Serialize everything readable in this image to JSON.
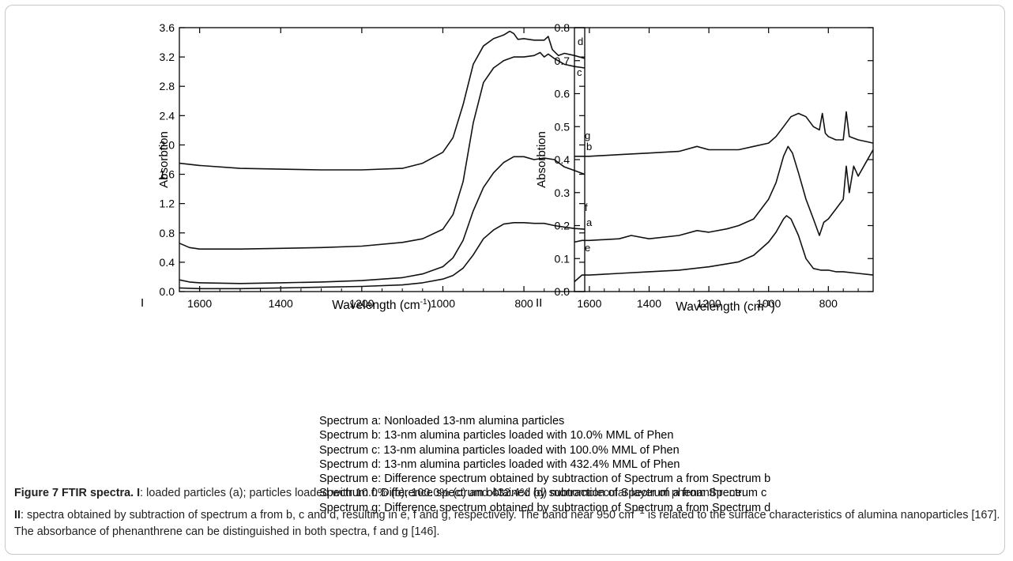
{
  "chart_data": [
    {
      "type": "line",
      "panel_label": "I",
      "xlabel_text": "Wavelength (cm",
      "xlabel_sup": "-1",
      "xlabel_close": ")",
      "ylabel": "Absorbtion",
      "xlim": [
        1650,
        650
      ],
      "ylim": [
        0,
        3.6
      ],
      "x_ticks": [
        "1600",
        "1400",
        "1200",
        "1000",
        "800"
      ],
      "x_tick_values": [
        1600,
        1400,
        1200,
        1000,
        800
      ],
      "y_ticks": [
        "0.0",
        "0.4",
        "0.8",
        "1.2",
        "1.6",
        "2.0",
        "2.4",
        "2.8",
        "3.2",
        "3.6"
      ],
      "y_tick_values": [
        0.0,
        0.4,
        0.8,
        1.2,
        1.6,
        2.0,
        2.4,
        2.8,
        3.2,
        3.6
      ],
      "series": [
        {
          "label": "a",
          "x": [
            1650,
            1600,
            1500,
            1400,
            1300,
            1200,
            1100,
            1050,
            1000,
            975,
            950,
            925,
            900,
            875,
            850,
            825,
            800,
            775,
            750,
            725,
            700,
            675,
            650
          ],
          "y": [
            0.05,
            0.04,
            0.04,
            0.05,
            0.06,
            0.07,
            0.09,
            0.12,
            0.17,
            0.22,
            0.32,
            0.5,
            0.72,
            0.84,
            0.92,
            0.94,
            0.94,
            0.93,
            0.93,
            0.9,
            0.88,
            0.86,
            0.85
          ]
        },
        {
          "label": "b",
          "x": [
            1650,
            1625,
            1600,
            1500,
            1400,
            1300,
            1200,
            1100,
            1050,
            1000,
            975,
            950,
            925,
            900,
            875,
            850,
            825,
            800,
            775,
            750,
            725,
            700,
            675,
            650
          ],
          "y": [
            0.16,
            0.13,
            0.12,
            0.11,
            0.12,
            0.13,
            0.15,
            0.19,
            0.24,
            0.34,
            0.46,
            0.7,
            1.1,
            1.42,
            1.62,
            1.76,
            1.84,
            1.84,
            1.8,
            1.82,
            1.8,
            1.7,
            1.65,
            1.6
          ]
        },
        {
          "label": "c",
          "x": [
            1650,
            1625,
            1600,
            1500,
            1400,
            1300,
            1200,
            1100,
            1050,
            1000,
            975,
            950,
            925,
            900,
            875,
            850,
            825,
            800,
            775,
            760,
            750,
            740,
            725,
            700,
            675,
            650
          ],
          "y": [
            0.66,
            0.6,
            0.58,
            0.58,
            0.59,
            0.6,
            0.62,
            0.67,
            0.72,
            0.85,
            1.05,
            1.5,
            2.3,
            2.85,
            3.05,
            3.15,
            3.2,
            3.2,
            3.22,
            3.26,
            3.2,
            3.24,
            3.18,
            3.1,
            3.07,
            3.05
          ]
        },
        {
          "label": "d",
          "x": [
            1650,
            1600,
            1500,
            1400,
            1300,
            1200,
            1100,
            1050,
            1000,
            975,
            950,
            925,
            900,
            875,
            850,
            835,
            825,
            815,
            800,
            775,
            750,
            740,
            730,
            715,
            700,
            675,
            650
          ],
          "y": [
            1.75,
            1.72,
            1.68,
            1.67,
            1.66,
            1.66,
            1.68,
            1.75,
            1.9,
            2.1,
            2.55,
            3.1,
            3.35,
            3.45,
            3.5,
            3.55,
            3.52,
            3.44,
            3.45,
            3.43,
            3.43,
            3.48,
            3.3,
            3.22,
            3.25,
            3.22,
            3.18
          ]
        }
      ]
    },
    {
      "type": "line",
      "panel_label": "II",
      "xlabel_text": "Wavelength (cm",
      "xlabel_sup": "-1",
      "xlabel_close": ")",
      "ylabel": "Absorbtion",
      "xlim": [
        1650,
        650
      ],
      "ylim": [
        0,
        0.8
      ],
      "x_ticks": [
        "1600",
        "1400",
        "1200",
        "1000",
        "800"
      ],
      "x_tick_values": [
        1600,
        1400,
        1200,
        1000,
        800
      ],
      "y_ticks": [
        "0.0",
        "0.1",
        "0.2",
        "0.3",
        "0.4",
        "0.5",
        "0.6",
        "0.7",
        "0.8"
      ],
      "y_tick_values": [
        0.0,
        0.1,
        0.2,
        0.3,
        0.4,
        0.5,
        0.6,
        0.7,
        0.8
      ],
      "series": [
        {
          "label": "e",
          "x": [
            1650,
            1625,
            1600,
            1500,
            1400,
            1300,
            1200,
            1100,
            1050,
            1000,
            975,
            950,
            940,
            925,
            900,
            875,
            850,
            825,
            800,
            775,
            750,
            700,
            650
          ],
          "y": [
            0.03,
            0.05,
            0.05,
            0.055,
            0.06,
            0.065,
            0.075,
            0.09,
            0.11,
            0.15,
            0.18,
            0.22,
            0.23,
            0.22,
            0.17,
            0.1,
            0.07,
            0.065,
            0.065,
            0.06,
            0.06,
            0.055,
            0.05
          ]
        },
        {
          "label": "f",
          "x": [
            1650,
            1625,
            1600,
            1500,
            1460,
            1400,
            1300,
            1240,
            1200,
            1140,
            1100,
            1050,
            1000,
            975,
            950,
            935,
            920,
            900,
            875,
            850,
            830,
            815,
            800,
            775,
            750,
            740,
            730,
            715,
            700,
            675,
            650
          ],
          "y": [
            0.15,
            0.155,
            0.155,
            0.16,
            0.17,
            0.16,
            0.17,
            0.185,
            0.18,
            0.19,
            0.2,
            0.22,
            0.28,
            0.33,
            0.41,
            0.44,
            0.42,
            0.36,
            0.28,
            0.22,
            0.17,
            0.21,
            0.22,
            0.25,
            0.28,
            0.38,
            0.3,
            0.38,
            0.35,
            0.39,
            0.43
          ]
        },
        {
          "label": "g",
          "x": [
            1650,
            1600,
            1500,
            1400,
            1300,
            1240,
            1200,
            1100,
            1050,
            1000,
            975,
            950,
            925,
            900,
            875,
            850,
            830,
            820,
            810,
            800,
            775,
            750,
            740,
            730,
            715,
            700,
            675,
            650
          ],
          "y": [
            0.41,
            0.41,
            0.415,
            0.42,
            0.425,
            0.44,
            0.43,
            0.43,
            0.44,
            0.45,
            0.47,
            0.5,
            0.53,
            0.54,
            0.53,
            0.5,
            0.49,
            0.54,
            0.48,
            0.47,
            0.46,
            0.46,
            0.545,
            0.47,
            0.465,
            0.46,
            0.455,
            0.45
          ]
        }
      ]
    }
  ],
  "legend": [
    "Spectrum a: Nonloaded 13-nm alumina particles",
    "Spectrum b: 13-nm alumina particles loaded with 10.0% MML of Phen",
    "Spectrum c: 13-nm alumina particles loaded with 100.0% MML of Phen",
    "Spectrum d: 13-nm alumina particles loaded with 432.4% MML of Phen",
    "Spectrum e: Difference spectrum obtained by subtraction of Spectrum a from Spectrum b",
    "Spectrum f: Difference spectrum obtained by subtraction of Spectrum a from Spectrum c",
    "Spectrum g: Difference spectrum obtained by subtraction of Spectrum a from Spectrum d"
  ],
  "caption": {
    "title": "Figure 7 FTIR spectra.",
    "label_I": "I",
    "text_I": ": loaded particles (a); particles loaded with 10.0% (b), 100.0% (c) and 432.4% (d) monomolecular layer of phenanthrene.",
    "label_II": "II",
    "text_II_a": ": spectra obtained by subtraction of spectrum a from b, c and d, resulting in e, f and g, respectively. The band near 950 cm",
    "text_II_sup": "−1",
    "text_II_b": " is related to the surface characteristics of alumina nanoparticles [167]. The absorbance of phenanthrene can be distinguished in both spectra, f and g [146]."
  }
}
